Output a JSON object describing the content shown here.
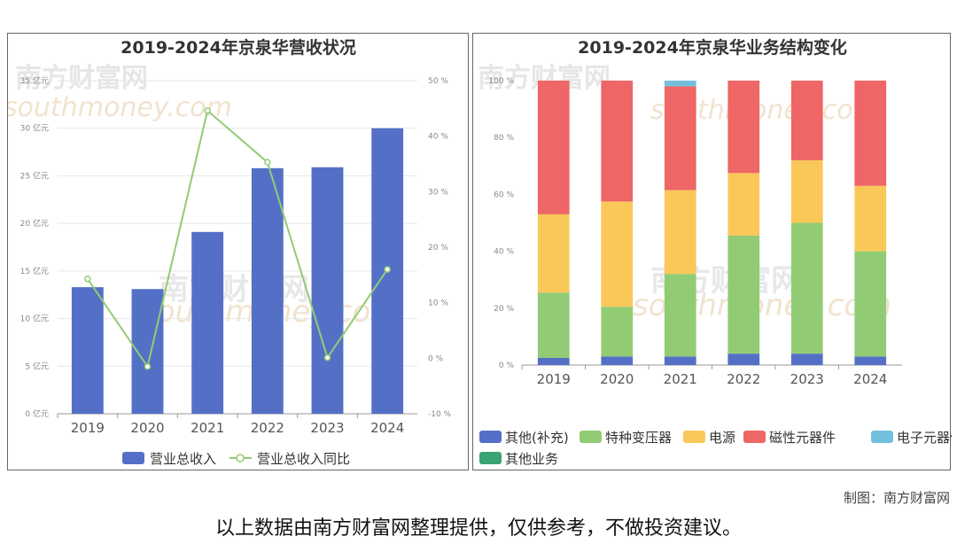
{
  "charts": {
    "revenue": {
      "title": "2019-2024年京泉华营收状况",
      "chart_data": {
        "type": "bar",
        "title": "2019-2024年京泉华营收状况",
        "categories": [
          "2019",
          "2020",
          "2021",
          "2022",
          "2023",
          "2024"
        ],
        "series": [
          {
            "name": "营业总收入",
            "kind": "bar",
            "values": [
              13.3,
              13.1,
              19.1,
              25.8,
              25.9,
              30.0
            ]
          },
          {
            "name": "营业总收入同比",
            "kind": "line",
            "values": [
              14.3,
              -1.5,
              44.6,
              35.3,
              0.1,
              16.0
            ]
          }
        ],
        "ylim_left": [
          0,
          35
        ],
        "ylim_right": [
          -10,
          50
        ],
        "yticks_left": [
          "0 亿元",
          "5 亿元",
          "10 亿元",
          "15 亿元",
          "20 亿元",
          "25 亿元",
          "30 亿元",
          "35 亿元"
        ],
        "yticks_right": [
          "-10 %",
          "0 %",
          "10 %",
          "20 %",
          "30 %",
          "40 %",
          "50 %"
        ],
        "legend_position": "bottom-center"
      }
    },
    "structure": {
      "title": "2019-2024年京泉华业务结构变化",
      "chart_data": {
        "type": "bar",
        "stacked": true,
        "title": "2019-2024年京泉华业务结构变化",
        "categories": [
          "2019",
          "2020",
          "2021",
          "2022",
          "2023",
          "2024"
        ],
        "series": [
          {
            "name": "其他(补充)",
            "values": [
              2.5,
              3.0,
              3.0,
              4.0,
              4.0,
              3.0
            ]
          },
          {
            "name": "特种变压器",
            "values": [
              23.0,
              17.5,
              29.0,
              41.5,
              46.0,
              37.0
            ]
          },
          {
            "name": "电源",
            "values": [
              27.5,
              37.0,
              29.5,
              22.0,
              22.0,
              23.0
            ]
          },
          {
            "name": "磁性元器件",
            "values": [
              47.0,
              42.5,
              36.5,
              32.5,
              28.0,
              37.0
            ]
          },
          {
            "name": "电子元器件",
            "values": [
              0,
              0,
              2.0,
              0,
              0,
              0
            ]
          },
          {
            "name": "其他业务",
            "values": [
              0,
              0,
              0,
              0,
              0,
              0
            ]
          }
        ],
        "ylim": [
          0,
          100
        ],
        "yticks": [
          "0 %",
          "20 %",
          "40 %",
          "60 %",
          "80 %",
          "100 %"
        ],
        "legend_position": "bottom"
      }
    }
  },
  "colors": {
    "bar_blue": "#5470c6",
    "line_green": "#91cc75",
    "other_supp": "#5470c6",
    "special_transformer": "#91cc75",
    "power": "#fac858",
    "magnetic": "#ee6666",
    "electronic": "#73c0de",
    "other_business": "#3ba272"
  },
  "watermark": {
    "cn": "南方财富网",
    "en": "southmoney.com"
  },
  "footer": {
    "credit": "制图：南方财富网",
    "disclaimer": "以上数据由南方财富网整理提供，仅供参考，不做投资建议。"
  }
}
